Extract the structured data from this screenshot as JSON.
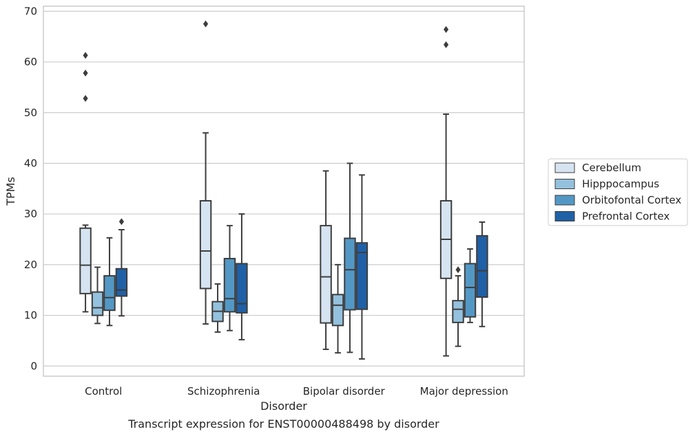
{
  "chart_data": {
    "type": "box",
    "title": "",
    "caption": "Transcript expression for ENST00000488498 by disorder",
    "xlabel": "Disorder",
    "ylabel": "TPMs",
    "ylim": [
      -2,
      71
    ],
    "yticks": [
      0,
      10,
      20,
      30,
      40,
      50,
      60,
      70
    ],
    "grid": "horizontal",
    "legend_position": "right",
    "categories": [
      "Control",
      "Schizophrenia",
      "Bipolar disorder",
      "Major depression"
    ],
    "series": [
      {
        "name": "Cerebellum",
        "color": "#d6e4f2",
        "boxes": [
          {
            "whisker_low": 10.7,
            "q1": 14.3,
            "median": 19.9,
            "q3": 27.2,
            "whisker_high": 27.8,
            "outliers": [
              52.8,
              57.8,
              61.3
            ]
          },
          {
            "whisker_low": 8.3,
            "q1": 15.3,
            "median": 22.7,
            "q3": 32.6,
            "whisker_high": 46.0,
            "outliers": [
              67.5
            ]
          },
          {
            "whisker_low": 3.3,
            "q1": 8.5,
            "median": 17.6,
            "q3": 27.7,
            "whisker_high": 38.5,
            "outliers": []
          },
          {
            "whisker_low": 2.0,
            "q1": 17.3,
            "median": 25.0,
            "q3": 32.6,
            "whisker_high": 49.7,
            "outliers": [
              63.4,
              66.4
            ]
          }
        ]
      },
      {
        "name": "Hipppocampus",
        "color": "#94c1dd",
        "boxes": [
          {
            "whisker_low": 8.4,
            "q1": 10.0,
            "median": 11.5,
            "q3": 14.6,
            "whisker_high": 19.5,
            "outliers": []
          },
          {
            "whisker_low": 6.7,
            "q1": 8.8,
            "median": 10.8,
            "q3": 12.7,
            "whisker_high": 16.2,
            "outliers": []
          },
          {
            "whisker_low": 2.6,
            "q1": 8.0,
            "median": 12.0,
            "q3": 14.1,
            "whisker_high": 20.0,
            "outliers": []
          },
          {
            "whisker_low": 3.9,
            "q1": 8.6,
            "median": 11.2,
            "q3": 12.9,
            "whisker_high": 17.8,
            "outliers": [
              19.0
            ]
          }
        ]
      },
      {
        "name": "Orbitofontal Cortex",
        "color": "#5398c5",
        "boxes": [
          {
            "whisker_low": 8.0,
            "q1": 11.0,
            "median": 13.5,
            "q3": 17.8,
            "whisker_high": 25.3,
            "outliers": []
          },
          {
            "whisker_low": 7.0,
            "q1": 10.7,
            "median": 13.3,
            "q3": 21.2,
            "whisker_high": 27.7,
            "outliers": []
          },
          {
            "whisker_low": 2.7,
            "q1": 11.1,
            "median": 19.0,
            "q3": 25.2,
            "whisker_high": 40.0,
            "outliers": []
          },
          {
            "whisker_low": 8.6,
            "q1": 9.7,
            "median": 15.5,
            "q3": 20.2,
            "whisker_high": 23.1,
            "outliers": []
          }
        ]
      },
      {
        "name": "Prefrontal Cortex",
        "color": "#2060a6",
        "boxes": [
          {
            "whisker_low": 9.9,
            "q1": 13.8,
            "median": 15.0,
            "q3": 19.2,
            "whisker_high": 26.9,
            "outliers": [
              28.5
            ]
          },
          {
            "whisker_low": 5.2,
            "q1": 10.5,
            "median": 12.3,
            "q3": 20.2,
            "whisker_high": 30.0,
            "outliers": []
          },
          {
            "whisker_low": 1.4,
            "q1": 11.2,
            "median": 22.4,
            "q3": 24.3,
            "whisker_high": 37.7,
            "outliers": []
          },
          {
            "whisker_low": 7.8,
            "q1": 13.6,
            "median": 18.8,
            "q3": 25.7,
            "whisker_high": 28.4,
            "outliers": []
          }
        ]
      }
    ]
  }
}
